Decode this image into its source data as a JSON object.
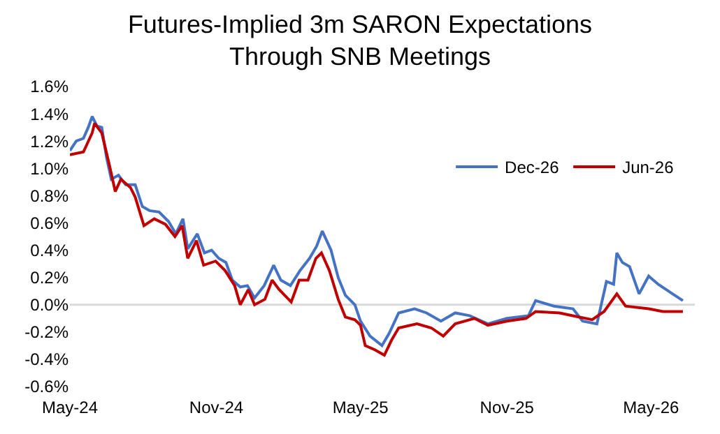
{
  "chart_data": {
    "type": "line",
    "title": "Futures-Implied 3m SARON Expectations\nThrough SNB Meetings",
    "ylim": [
      -0.6,
      1.6
    ],
    "yticks": [
      {
        "value": -0.6,
        "label": "-0.6%"
      },
      {
        "value": -0.4,
        "label": "-0.4%"
      },
      {
        "value": -0.2,
        "label": "-0.2%"
      },
      {
        "value": 0,
        "label": "0.0%"
      },
      {
        "value": 0.2,
        "label": "0.2%"
      },
      {
        "value": 0.4,
        "label": "0.4%"
      },
      {
        "value": 0.6,
        "label": "0.6%"
      },
      {
        "value": 0.8,
        "label": "0.8%"
      },
      {
        "value": 1.0,
        "label": "1.0%"
      },
      {
        "value": 1.2,
        "label": "1.2%"
      },
      {
        "value": 1.4,
        "label": "1.4%"
      },
      {
        "value": 1.6,
        "label": "1.6%"
      }
    ],
    "xlim": [
      "2024-05-01",
      "2026-06-25"
    ],
    "xticks": [
      {
        "value": "2024-05-01",
        "label": "May-24"
      },
      {
        "value": "2024-11-01",
        "label": "Nov-24"
      },
      {
        "value": "2025-05-01",
        "label": "May-25"
      },
      {
        "value": "2025-11-01",
        "label": "Nov-25"
      },
      {
        "value": "2026-05-01",
        "label": "May-26"
      }
    ],
    "ref_lines": [
      {
        "axis": "y",
        "value": 0,
        "color": "#d9d9d9"
      }
    ],
    "grid": false,
    "legend": "top right",
    "line_style": "solid",
    "marker": "none",
    "series": [
      {
        "name": "Dec-26",
        "color": "#4472c4",
        "x": [
          "2024-05-01",
          "2024-05-09",
          "2024-05-18",
          "2024-05-24",
          "2024-05-29",
          "2024-06-04",
          "2024-06-10",
          "2024-06-16",
          "2024-06-22",
          "2024-07-01",
          "2024-07-10",
          "2024-07-22",
          "2024-07-31",
          "2024-08-09",
          "2024-08-21",
          "2024-09-02",
          "2024-09-11",
          "2024-09-20",
          "2024-09-26",
          "2024-10-08",
          "2024-10-17",
          "2024-10-26",
          "2024-11-04",
          "2024-11-13",
          "2024-11-21",
          "2024-12-01",
          "2024-12-10",
          "2024-12-19",
          "2024-12-31",
          "2025-01-12",
          "2025-01-21",
          "2025-02-02",
          "2025-02-14",
          "2025-02-26",
          "2025-03-07",
          "2025-03-14",
          "2025-03-25",
          "2025-04-03",
          "2025-04-12",
          "2025-04-24",
          "2025-05-01",
          "2025-05-13",
          "2025-05-28",
          "2025-06-06",
          "2025-06-18",
          "2025-07-08",
          "2025-07-23",
          "2025-08-10",
          "2025-08-28",
          "2025-09-15",
          "2025-10-08",
          "2025-11-01",
          "2025-11-28",
          "2025-12-07",
          "2025-12-30",
          "2026-01-23",
          "2026-02-04",
          "2026-02-22",
          "2026-03-06",
          "2026-03-15",
          "2026-03-19",
          "2026-03-26",
          "2026-04-04",
          "2026-04-16",
          "2026-04-28",
          "2026-05-10",
          "2026-05-28",
          "2026-06-10"
        ],
        "values": [
          1.13,
          1.2,
          1.22,
          1.3,
          1.38,
          1.31,
          1.3,
          1.08,
          0.92,
          0.95,
          0.88,
          0.88,
          0.72,
          0.69,
          0.68,
          0.61,
          0.52,
          0.63,
          0.41,
          0.52,
          0.38,
          0.4,
          0.34,
          0.31,
          0.18,
          0.13,
          0.14,
          0.05,
          0.14,
          0.29,
          0.18,
          0.14,
          0.25,
          0.34,
          0.43,
          0.54,
          0.4,
          0.2,
          0.07,
          0.0,
          -0.12,
          -0.23,
          -0.3,
          -0.21,
          -0.06,
          -0.03,
          -0.06,
          -0.12,
          -0.06,
          -0.08,
          -0.14,
          -0.1,
          -0.08,
          0.03,
          -0.01,
          -0.03,
          -0.12,
          -0.14,
          0.17,
          0.15,
          0.38,
          0.31,
          0.28,
          0.08,
          0.21,
          0.15,
          0.08,
          0.03
        ]
      },
      {
        "name": "Jun-26",
        "color": "#c00000",
        "x": [
          "2024-05-01",
          "2024-05-18",
          "2024-05-29",
          "2024-06-01",
          "2024-06-10",
          "2024-06-19",
          "2024-06-27",
          "2024-07-04",
          "2024-07-16",
          "2024-07-22",
          "2024-08-02",
          "2024-08-15",
          "2024-08-29",
          "2024-09-10",
          "2024-09-19",
          "2024-09-26",
          "2024-10-07",
          "2024-10-16",
          "2024-10-31",
          "2024-11-12",
          "2024-11-24",
          "2024-12-01",
          "2024-12-11",
          "2024-12-19",
          "2025-01-01",
          "2025-01-10",
          "2025-01-19",
          "2025-02-03",
          "2025-02-13",
          "2025-02-24",
          "2025-03-06",
          "2025-03-13",
          "2025-03-23",
          "2025-04-03",
          "2025-04-12",
          "2025-04-24",
          "2025-05-01",
          "2025-05-07",
          "2025-05-19",
          "2025-05-31",
          "2025-06-09",
          "2025-06-18",
          "2025-07-11",
          "2025-07-29",
          "2025-08-13",
          "2025-08-28",
          "2025-09-21",
          "2025-10-08",
          "2025-11-01",
          "2025-11-25",
          "2025-12-07",
          "2026-01-06",
          "2026-01-30",
          "2026-02-16",
          "2026-03-03",
          "2026-03-19",
          "2026-03-30",
          "2026-04-28",
          "2026-05-16",
          "2026-06-10"
        ],
        "values": [
          1.1,
          1.12,
          1.26,
          1.33,
          1.26,
          1.04,
          0.83,
          0.92,
          0.86,
          0.79,
          0.58,
          0.63,
          0.59,
          0.5,
          0.58,
          0.34,
          0.47,
          0.29,
          0.32,
          0.25,
          0.14,
          0.0,
          0.11,
          0.0,
          0.04,
          0.18,
          0.11,
          0.02,
          0.18,
          0.18,
          0.34,
          0.38,
          0.25,
          0.04,
          -0.09,
          -0.11,
          -0.15,
          -0.3,
          -0.33,
          -0.37,
          -0.26,
          -0.17,
          -0.14,
          -0.17,
          -0.23,
          -0.14,
          -0.1,
          -0.15,
          -0.12,
          -0.1,
          -0.05,
          -0.06,
          -0.09,
          -0.11,
          -0.05,
          0.08,
          -0.01,
          -0.03,
          -0.05,
          -0.05
        ]
      }
    ]
  }
}
